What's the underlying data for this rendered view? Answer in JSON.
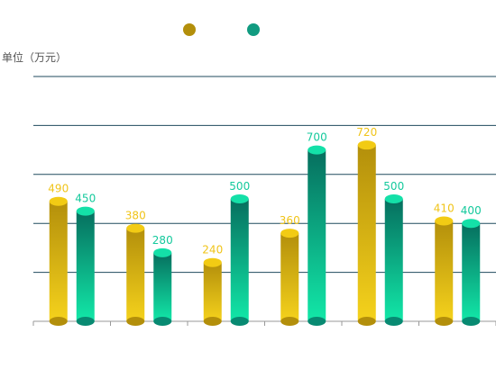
{
  "chart_data": {
    "type": "bar",
    "title": "",
    "unit_label": "单位（万元）",
    "categories": [
      "",
      "",
      "",
      "",
      "",
      ""
    ],
    "series": [
      {
        "name": "",
        "values": [
          490,
          380,
          240,
          360,
          720,
          410
        ],
        "color": "#b38f0b",
        "color_top": "#f2cb14",
        "label_color": "#f0c419"
      },
      {
        "name": "",
        "values": [
          450,
          280,
          500,
          700,
          500,
          400
        ],
        "color": "#088a72",
        "color_top": "#14e0a8",
        "label_color": "#14c99c"
      }
    ],
    "ylim": [
      0,
      1000
    ],
    "grid": true,
    "legend": "top-center"
  }
}
